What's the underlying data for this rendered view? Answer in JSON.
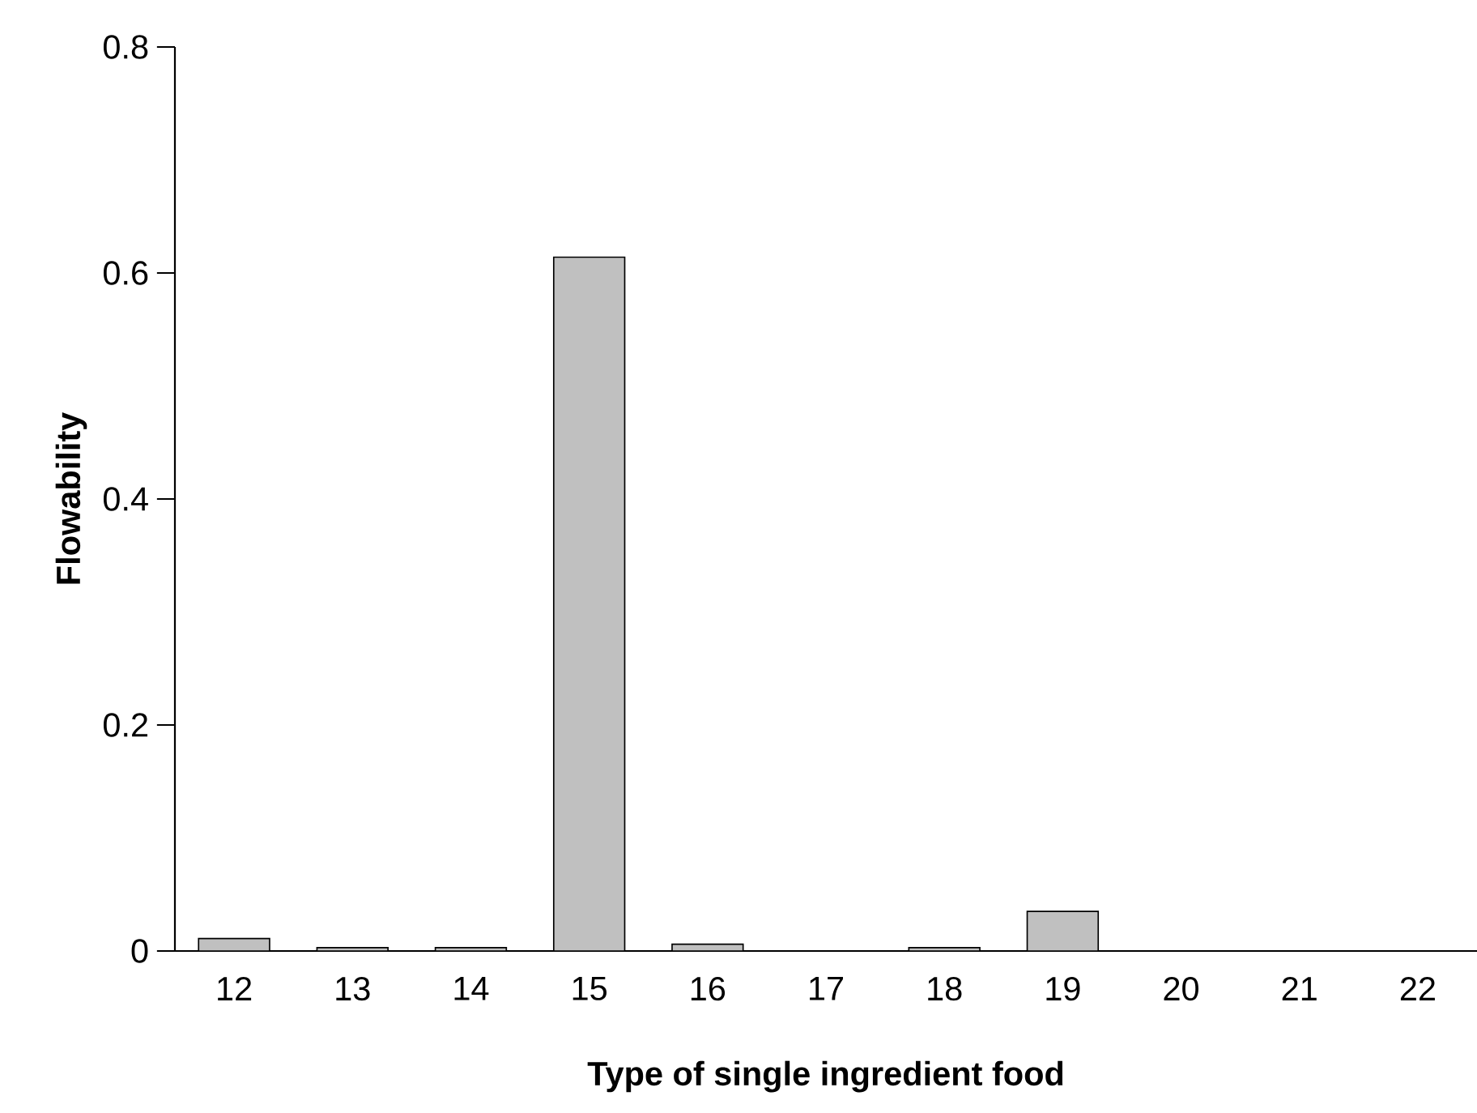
{
  "chart_data": {
    "type": "bar",
    "xlabel": "Type of single ingredient food",
    "ylabel": "Flowability",
    "categories": [
      "12",
      "13",
      "14",
      "15",
      "16",
      "17",
      "18",
      "19",
      "20",
      "21",
      "22"
    ],
    "values": [
      0.011,
      0.003,
      0.003,
      0.614,
      0.006,
      null,
      0.003,
      0.035,
      null,
      null,
      null
    ],
    "color": "#c0c0c0",
    "ylim": [
      0,
      0.8
    ],
    "yticks": [
      0,
      0.2,
      0.4,
      0.6,
      0.8
    ]
  }
}
